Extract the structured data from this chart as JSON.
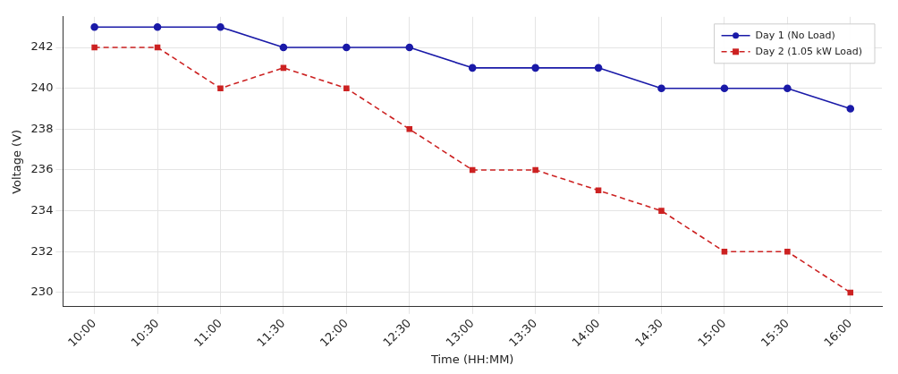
{
  "chart_data": {
    "type": "line",
    "xlabel": "Time (HH:MM)",
    "ylabel": "Voltage (V)",
    "categories": [
      "10:00",
      "10:30",
      "11:00",
      "11:30",
      "12:00",
      "12:30",
      "13:00",
      "13:30",
      "14:00",
      "14:30",
      "15:00",
      "15:30",
      "16:00"
    ],
    "series": [
      {
        "name": "Day 1 (No Load)",
        "color": "#1a1aa8",
        "marker": "circle",
        "line_style": "solid",
        "values": [
          243,
          243,
          243,
          242,
          242,
          242,
          241,
          241,
          241,
          240,
          240,
          240,
          239
        ]
      },
      {
        "name": "Day 2 (1.05 kW Load)",
        "color": "#cc2222",
        "marker": "square",
        "line_style": "dashed",
        "values": [
          242,
          242,
          240,
          241,
          240,
          238,
          236,
          236,
          235,
          234,
          232,
          232,
          230
        ]
      }
    ],
    "ylim": [
      229.3,
      243.5
    ],
    "yticks": [
      230,
      232,
      234,
      236,
      238,
      240,
      242
    ],
    "grid": true,
    "legend": "top right"
  }
}
